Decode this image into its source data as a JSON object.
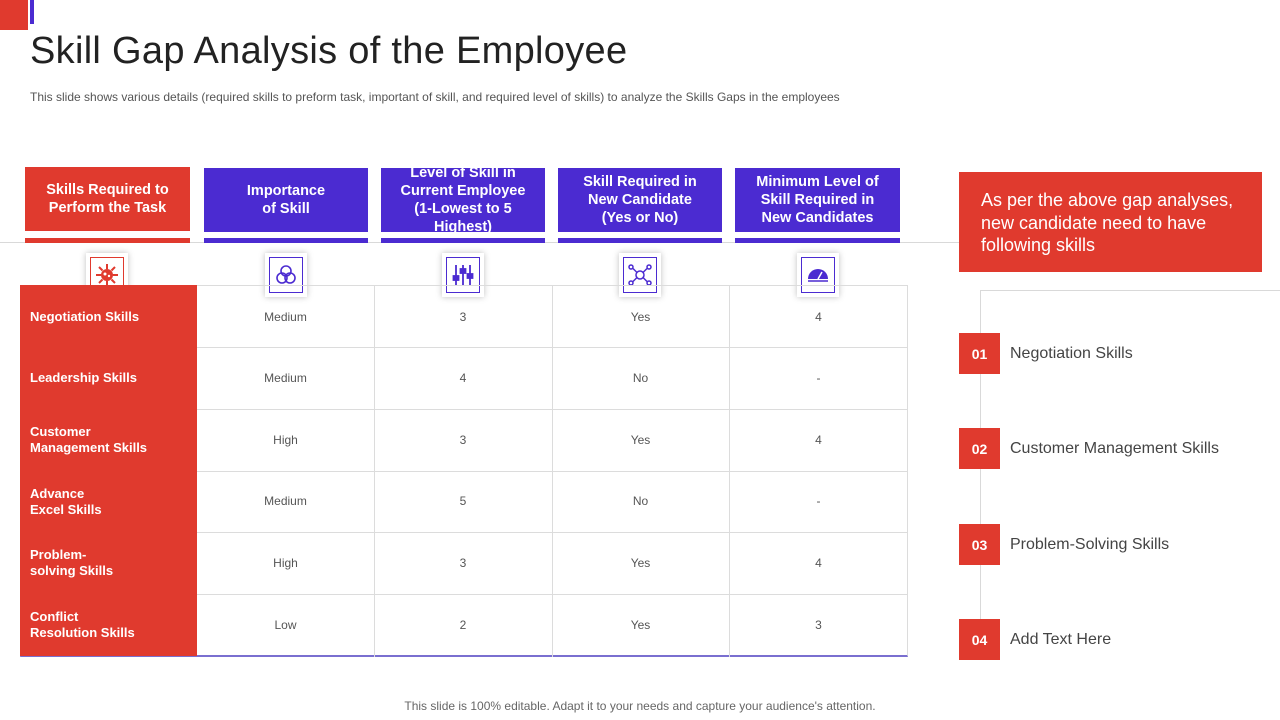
{
  "slide": {
    "title": "Skill Gap Analysis of the Employee",
    "subtitle": "This slide shows various  details (required  skills to preform  task, important  of skill, and required  level  of skills) to analyze the Skills Gaps in the employees",
    "footer": "This slide is 100% editable. Adapt it to your needs and capture your audience's attention."
  },
  "table": {
    "headers": [
      "Skills Required to\nPerform the Task",
      "Importance\nof Skill",
      "Level of Skill in\nCurrent Employee\n(1-Lowest to 5 Highest)",
      "Skill Required in\nNew Candidate\n(Yes or No)",
      "Minimum Level of\nSkill Required in\nNew Candidates"
    ],
    "header_icons": [
      "virus-icon",
      "triad-circles-icon",
      "sliders-icon",
      "network-icon",
      "gauge-icon"
    ],
    "rows": [
      {
        "skill": "Negotiation Skills",
        "importance": "Medium",
        "level": "3",
        "required": "Yes",
        "minimum": "4"
      },
      {
        "skill": "Leadership Skills",
        "importance": "Medium",
        "level": "4",
        "required": "No",
        "minimum": "-"
      },
      {
        "skill": "Customer\nManagement Skills",
        "importance": "High",
        "level": "3",
        "required": "Yes",
        "minimum": "4"
      },
      {
        "skill": "Advance\nExcel Skills",
        "importance": "Medium",
        "level": "5",
        "required": "No",
        "minimum": "-"
      },
      {
        "skill": "Problem-\nsolving  Skills",
        "importance": "High",
        "level": "3",
        "required": "Yes",
        "minimum": "4"
      },
      {
        "skill": "Conflict\nResolution Skills",
        "importance": "Low",
        "level": "2",
        "required": "Yes",
        "minimum": "3"
      }
    ]
  },
  "callout": {
    "text": "As per the above gap analyses, new candidate need to have following skills"
  },
  "needed_skills": [
    {
      "num": "01",
      "label": "Negotiation Skills"
    },
    {
      "num": "02",
      "label": "Customer Management Skills"
    },
    {
      "num": "03",
      "label": "Problem-Solving Skills"
    },
    {
      "num": "04",
      "label": "Add Text Here"
    }
  ],
  "colors": {
    "accent_red": "#e03a2e",
    "accent_blue": "#4b2bd1"
  }
}
